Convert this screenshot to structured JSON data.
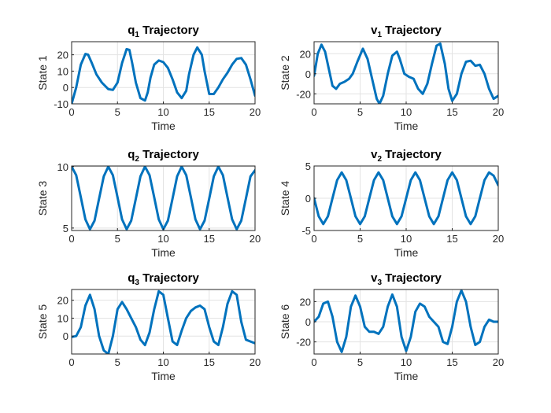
{
  "chart_data": [
    {
      "type": "line",
      "title": "q",
      "title_sub": "1",
      "title_suffix": " Trajectory",
      "xlabel": "Time",
      "ylabel": "State 1",
      "xlim": [
        0,
        20
      ],
      "ylim": [
        -10,
        28
      ],
      "xticks": [
        0,
        5,
        10,
        15,
        20
      ],
      "yticks": [
        -10,
        0,
        10,
        20
      ],
      "grid": true,
      "color": "#0072BD",
      "series": [
        {
          "x": [
            0,
            0.5,
            1,
            1.5,
            1.8,
            2.2,
            2.7,
            3.3,
            4,
            4.5,
            5,
            5.5,
            6,
            6.3,
            6.6,
            7,
            7.5,
            8,
            8.3,
            8.6,
            9,
            9.5,
            10,
            10.5,
            11,
            11.5,
            12,
            12.5,
            12.8,
            13.3,
            13.7,
            14.2,
            14.5,
            15,
            15.5,
            16,
            16.5,
            17,
            17.5,
            18,
            18.5,
            19,
            19.5,
            20
          ],
          "y": [
            -10,
            0,
            14,
            20.5,
            20,
            15,
            8,
            3,
            -1,
            -1.5,
            3,
            15,
            23.5,
            23,
            15,
            3,
            -6.5,
            -8,
            -3,
            6,
            14,
            16.5,
            15.5,
            12,
            5,
            -3,
            -6.5,
            -2,
            8,
            20,
            24.5,
            20,
            10,
            -4,
            -4,
            0,
            5,
            9,
            14,
            17.5,
            18,
            14,
            5,
            -5
          ]
        }
      ]
    },
    {
      "type": "line",
      "title": "v",
      "title_sub": "1",
      "title_suffix": " Trajectory",
      "xlabel": "Time",
      "ylabel": "State 2",
      "xlim": [
        0,
        20
      ],
      "ylim": [
        -30,
        32
      ],
      "xticks": [
        0,
        5,
        10,
        15,
        20
      ],
      "yticks": [
        -20,
        0,
        20
      ],
      "grid": true,
      "color": "#0072BD",
      "series": [
        {
          "x": [
            0,
            0.4,
            0.8,
            1.2,
            1.6,
            2,
            2.4,
            2.8,
            3.3,
            3.8,
            4.2,
            4.7,
            5.3,
            5.8,
            6.3,
            6.8,
            7.1,
            7.5,
            8,
            8.5,
            9,
            9.3,
            9.8,
            10.3,
            10.8,
            11.3,
            11.8,
            12.3,
            12.8,
            13.3,
            13.7,
            14.2,
            14.6,
            15,
            15.5,
            16,
            16.5,
            17,
            17.5,
            18,
            18.5,
            19,
            19.5,
            20
          ],
          "y": [
            -2,
            20,
            29,
            22,
            5,
            -12,
            -15,
            -10,
            -8,
            -5,
            0,
            12,
            25,
            15,
            -5,
            -25,
            -30,
            -22,
            0,
            18,
            22,
            15,
            0,
            -3,
            -5,
            -15,
            -20,
            -10,
            10,
            28,
            30,
            10,
            -15,
            -27,
            -20,
            0,
            12,
            13,
            8,
            9,
            0,
            -15,
            -25,
            -22
          ]
        }
      ]
    },
    {
      "type": "line",
      "title": "q",
      "title_sub": "2",
      "title_suffix": " Trajectory",
      "xlabel": "Time",
      "ylabel": "State 3",
      "xlim": [
        0,
        20
      ],
      "ylim": [
        4.8,
        10.05
      ],
      "xticks": [
        0,
        5,
        10,
        15,
        20
      ],
      "yticks": [
        5,
        10
      ],
      "grid": true,
      "color": "#0072BD",
      "series": [
        {
          "x": [
            0,
            0.5,
            1,
            1.5,
            2,
            2.5,
            3,
            3.5,
            4,
            4.5,
            5,
            5.5,
            6,
            6.5,
            7,
            7.5,
            8,
            8.5,
            9,
            9.5,
            10,
            10.5,
            11,
            11.5,
            12,
            12.5,
            13,
            13.5,
            14,
            14.5,
            15,
            15.5,
            16,
            16.5,
            17,
            17.5,
            18,
            18.5,
            19,
            19.5,
            20
          ],
          "y": [
            10,
            9.3,
            7.5,
            5.7,
            4.9,
            5.6,
            7.4,
            9.2,
            10,
            9.3,
            7.5,
            5.7,
            4.9,
            5.6,
            7.4,
            9.2,
            10,
            9.3,
            7.5,
            5.7,
            4.9,
            5.6,
            7.4,
            9.2,
            10,
            9.3,
            7.5,
            5.7,
            4.9,
            5.6,
            7.4,
            9.2,
            10,
            9.3,
            7.5,
            5.7,
            4.9,
            5.6,
            7.4,
            9.2,
            9.7
          ]
        }
      ]
    },
    {
      "type": "line",
      "title": "v",
      "title_sub": "2",
      "title_suffix": " Trajectory",
      "xlabel": "Time",
      "ylabel": "State 4",
      "xlim": [
        0,
        20
      ],
      "ylim": [
        -5,
        5
      ],
      "xticks": [
        0,
        5,
        10,
        15,
        20
      ],
      "yticks": [
        -5,
        0,
        5
      ],
      "grid": true,
      "color": "#0072BD",
      "series": [
        {
          "x": [
            0,
            0.5,
            1,
            1.5,
            2,
            2.5,
            3,
            3.5,
            4,
            4.5,
            5,
            5.5,
            6,
            6.5,
            7,
            7.5,
            8,
            8.5,
            9,
            9.5,
            10,
            10.5,
            11,
            11.5,
            12,
            12.5,
            13,
            13.5,
            14,
            14.5,
            15,
            15.5,
            16,
            16.5,
            17,
            17.5,
            18,
            18.5,
            19,
            19.5,
            20
          ],
          "y": [
            0,
            -2.8,
            -4,
            -2.8,
            0,
            2.8,
            4,
            2.8,
            0,
            -2.8,
            -4,
            -2.8,
            0,
            2.8,
            4,
            2.8,
            0,
            -2.8,
            -4,
            -2.8,
            0,
            2.8,
            4,
            2.8,
            0,
            -2.8,
            -4,
            -2.8,
            0,
            2.8,
            4,
            2.8,
            0,
            -2.8,
            -4,
            -2.8,
            0,
            2.8,
            4,
            3.5,
            2
          ]
        }
      ]
    },
    {
      "type": "line",
      "title": "q",
      "title_sub": "3",
      "title_suffix": " Trajectory",
      "xlabel": "Time",
      "ylabel": "State 5",
      "xlim": [
        0,
        20
      ],
      "ylim": [
        -10,
        26
      ],
      "xticks": [
        0,
        5,
        10,
        15,
        20
      ],
      "yticks": [
        0,
        10,
        20
      ],
      "grid": true,
      "color": "#0072BD",
      "series": [
        {
          "x": [
            0,
            0.5,
            1,
            1.5,
            2,
            2.5,
            3,
            3.5,
            4,
            4.5,
            5,
            5.5,
            6,
            6.5,
            7,
            7.5,
            8,
            8.5,
            9,
            9.5,
            10,
            10.5,
            11,
            11.5,
            12,
            12.5,
            13,
            13.5,
            14,
            14.5,
            15,
            15.5,
            16,
            16.5,
            17,
            17.5,
            18,
            18.5,
            19,
            19.5,
            20
          ],
          "y": [
            -0.5,
            0,
            5,
            17,
            23,
            15,
            0,
            -8,
            -10,
            0,
            15,
            19,
            15,
            10,
            5,
            -2,
            -5,
            2,
            15,
            25,
            23,
            10,
            -3,
            -5,
            3,
            10,
            14,
            16,
            17,
            15,
            5,
            -3,
            -5,
            5,
            18,
            25,
            23,
            8,
            -2,
            -3,
            -4
          ]
        }
      ]
    },
    {
      "type": "line",
      "title": "v",
      "title_sub": "3",
      "title_suffix": " Trajectory",
      "xlabel": "Time",
      "ylabel": "State 6",
      "xlim": [
        0,
        20
      ],
      "ylim": [
        -32,
        32
      ],
      "xticks": [
        0,
        5,
        10,
        15,
        20
      ],
      "yticks": [
        -20,
        0,
        20
      ],
      "grid": true,
      "color": "#0072BD",
      "series": [
        {
          "x": [
            0,
            0.5,
            1,
            1.5,
            2,
            2.5,
            3,
            3.5,
            4,
            4.5,
            5,
            5.5,
            6,
            6.5,
            7,
            7.5,
            8,
            8.5,
            9,
            9.5,
            10,
            10.5,
            11,
            11.5,
            12,
            12.5,
            13,
            13.5,
            14,
            14.5,
            15,
            15.5,
            16,
            16.5,
            17,
            17.5,
            18,
            18.5,
            19,
            19.5,
            20
          ],
          "y": [
            0,
            5,
            18,
            20,
            5,
            -20,
            -30,
            -15,
            15,
            26,
            15,
            -5,
            -10,
            -10,
            -12,
            -5,
            15,
            27,
            15,
            -15,
            -29,
            -15,
            10,
            18,
            15,
            5,
            0,
            -5,
            -20,
            -22,
            -5,
            20,
            31,
            20,
            -5,
            -23,
            -20,
            -5,
            2,
            0,
            0
          ]
        }
      ]
    }
  ]
}
